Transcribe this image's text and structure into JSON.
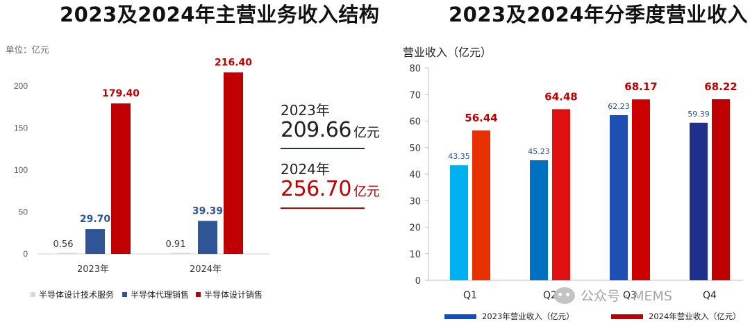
{
  "chart_data": [
    {
      "type": "bar",
      "title": "2023及2024年主营业务收入结构",
      "unit_label": "单位：亿元",
      "categories": [
        "2023年",
        "2024年"
      ],
      "ylim": [
        0,
        220
      ],
      "yticks": [
        0,
        50,
        100,
        150,
        200
      ],
      "series": [
        {
          "name": "半导体设计技术服务",
          "values": [
            0.56,
            0.91
          ],
          "labels": [
            "0.56",
            "0.91"
          ],
          "color": "#d9d9d9",
          "label_color": "#333333"
        },
        {
          "name": "半导体代理销售",
          "values": [
            29.7,
            39.39
          ],
          "labels": [
            "29.70",
            "39.39"
          ],
          "color": "#2f5597",
          "label_color": "#2f5597"
        },
        {
          "name": "半导体设计销售",
          "values": [
            179.4,
            216.4
          ],
          "labels": [
            "179.40",
            "216.40"
          ],
          "color": "#c00000",
          "label_color": "#c00000"
        }
      ],
      "legend_position": "bottom",
      "grid": false,
      "totals": [
        {
          "year": "2023年",
          "value": "209.66",
          "unit": "亿元",
          "color": "#222222"
        },
        {
          "year": "2024年",
          "value": "256.70",
          "unit": "亿元",
          "color": "#c00000"
        }
      ]
    },
    {
      "type": "bar",
      "title": "2023及2024年分季度营业收入",
      "ylabel": "营业收入（亿元）",
      "categories": [
        "Q1",
        "Q2",
        "Q3",
        "Q4"
      ],
      "ylim": [
        0,
        80
      ],
      "yticks": [
        0,
        10,
        20,
        30,
        40,
        50,
        60,
        70,
        80
      ],
      "series": [
        {
          "name": "2023年营业收入（亿元）",
          "values": [
            43.35,
            45.23,
            62.23,
            59.39
          ],
          "labels": [
            "43.35",
            "45.23",
            "62.23",
            "59.39"
          ],
          "colors": [
            "#00b0f0",
            "#0070c0",
            "#1f4fb4",
            "#1f2f8c"
          ],
          "legend_color": "#0a4fc8",
          "label_color": "#1f4e9e"
        },
        {
          "name": "2024年营业收入（亿元）",
          "values": [
            56.44,
            64.48,
            68.17,
            68.22
          ],
          "labels": [
            "56.44",
            "64.48",
            "68.17",
            "68.22"
          ],
          "colors": [
            "#e83000",
            "#e01010",
            "#cc0000",
            "#c00000"
          ],
          "legend_color": "#c00000",
          "label_color": "#c00000"
        }
      ],
      "legend_position": "bottom",
      "grid": false
    }
  ],
  "watermark": "公众号 · MEMS"
}
